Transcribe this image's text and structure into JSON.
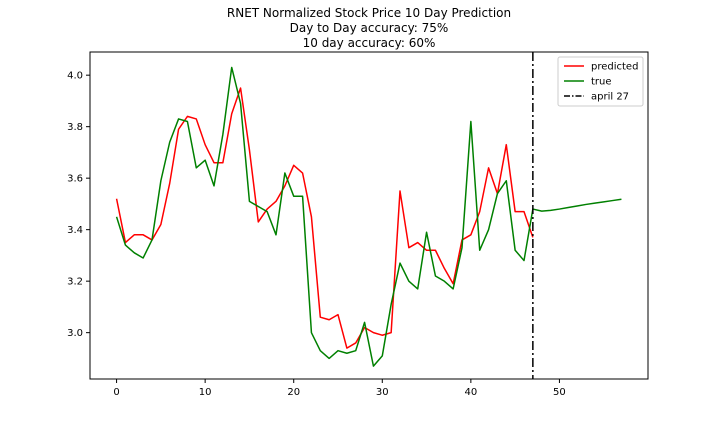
{
  "chart_data": {
    "type": "line",
    "title_lines": [
      "RNET Normalized Stock Price 10 Day Prediction",
      "Day to Day accuracy: 75%",
      "10 day accuracy: 60%"
    ],
    "xlim": [
      -3,
      60
    ],
    "ylim": [
      2.82,
      4.09
    ],
    "xticks": [
      0,
      10,
      20,
      30,
      40,
      50
    ],
    "yticks": [
      3.0,
      3.2,
      3.4,
      3.6,
      3.8,
      4.0
    ],
    "ytick_labels": [
      "3.0",
      "3.2",
      "3.4",
      "3.6",
      "3.8",
      "4.0"
    ],
    "grid": false,
    "legend_placement": "top-right",
    "series": [
      {
        "name": "predicted",
        "color": "#ff0000",
        "x": [
          0,
          1,
          2,
          3,
          4,
          5,
          6,
          7,
          8,
          9,
          10,
          11,
          12,
          13,
          14,
          15,
          16,
          17,
          18,
          19,
          20,
          21,
          22,
          23,
          24,
          25,
          26,
          27,
          28,
          29,
          30,
          31,
          32,
          33,
          34,
          35,
          36,
          37,
          38,
          39,
          40,
          41,
          42,
          43,
          44,
          45,
          46,
          47
        ],
        "y": [
          3.52,
          3.35,
          3.38,
          3.38,
          3.36,
          3.42,
          3.58,
          3.79,
          3.84,
          3.83,
          3.73,
          3.66,
          3.66,
          3.85,
          3.95,
          3.71,
          3.43,
          3.48,
          3.51,
          3.57,
          3.65,
          3.62,
          3.45,
          3.06,
          3.05,
          3.07,
          2.94,
          2.96,
          3.02,
          3.0,
          2.99,
          3.0,
          3.55,
          3.33,
          3.35,
          3.32,
          3.32,
          3.25,
          3.19,
          3.36,
          3.38,
          3.47,
          3.64,
          3.54,
          3.73,
          3.47,
          3.47,
          3.37
        ]
      },
      {
        "name": "true",
        "color": "#008000",
        "x": [
          0,
          1,
          2,
          3,
          4,
          5,
          6,
          7,
          8,
          9,
          10,
          11,
          12,
          13,
          14,
          15,
          16,
          17,
          18,
          19,
          20,
          21,
          22,
          23,
          24,
          25,
          26,
          27,
          28,
          29,
          30,
          31,
          32,
          33,
          34,
          35,
          36,
          37,
          38,
          39,
          40,
          41,
          42,
          43,
          44,
          45,
          46,
          47,
          48,
          49,
          50,
          51,
          52,
          53,
          54,
          55,
          56,
          57
        ],
        "y": [
          3.45,
          3.34,
          3.31,
          3.29,
          3.36,
          3.59,
          3.74,
          3.83,
          3.82,
          3.64,
          3.67,
          3.57,
          3.77,
          4.03,
          3.89,
          3.51,
          3.49,
          3.47,
          3.38,
          3.62,
          3.53,
          3.53,
          3.0,
          2.93,
          2.9,
          2.93,
          2.92,
          2.93,
          3.04,
          2.87,
          2.91,
          3.11,
          3.27,
          3.2,
          3.17,
          3.39,
          3.22,
          3.2,
          3.17,
          3.33,
          3.82,
          3.32,
          3.4,
          3.54,
          3.59,
          3.32,
          3.28,
          3.48,
          3.472,
          3.475,
          3.48,
          3.486,
          3.492,
          3.498,
          3.503,
          3.508,
          3.513,
          3.518
        ]
      }
    ],
    "vlines": [
      {
        "name": "april 27",
        "x": 47,
        "color": "#000000",
        "style": "dashdot"
      }
    ]
  }
}
